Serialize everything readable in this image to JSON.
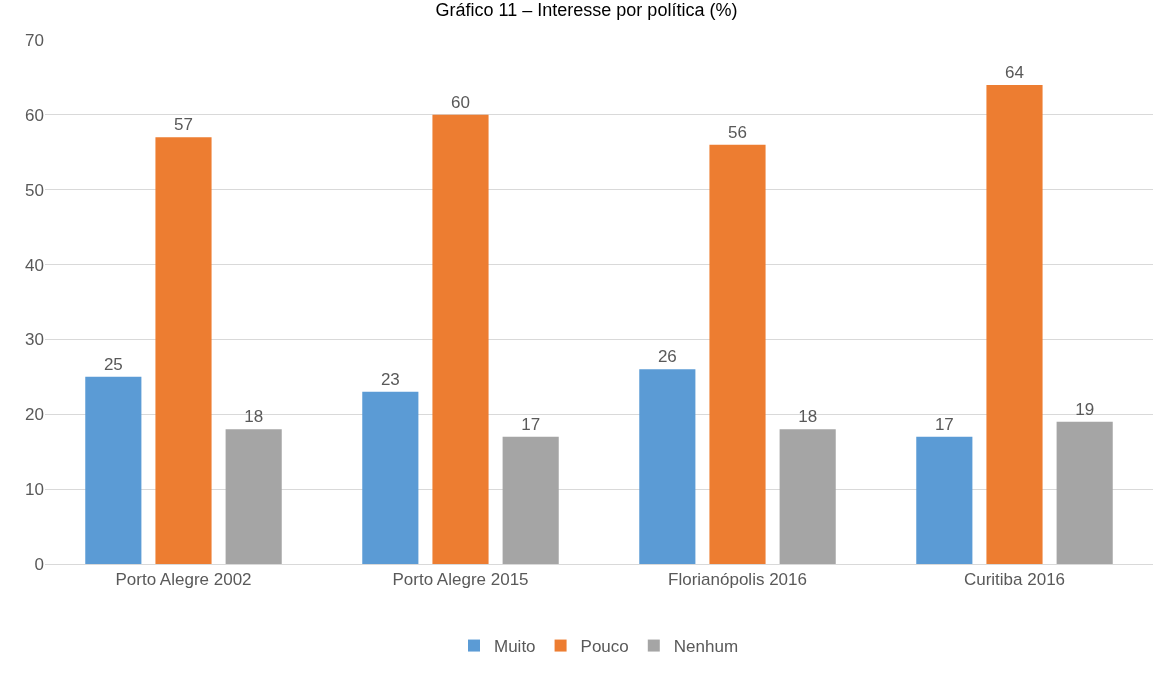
{
  "chart_data": {
    "type": "bar",
    "title": "Gráfico 11 – Interesse por política (%)",
    "categories": [
      "Porto Alegre 2002",
      "Porto Alegre 2015",
      "Florianópolis 2016",
      "Curitiba 2016"
    ],
    "series": [
      {
        "name": "Muito",
        "color": "#5b9bd5",
        "values": [
          25,
          23,
          26,
          17
        ]
      },
      {
        "name": "Pouco",
        "color": "#ed7d31",
        "values": [
          57,
          60,
          56,
          64
        ]
      },
      {
        "name": "Nenhum",
        "color": "#a5a5a5",
        "values": [
          18,
          17,
          18,
          19
        ]
      }
    ],
    "ylim": [
      0,
      70
    ],
    "yticks": [
      0,
      10,
      20,
      30,
      40,
      50,
      60,
      70
    ],
    "grid": "y",
    "legend": "bottom",
    "data_labels": true
  }
}
